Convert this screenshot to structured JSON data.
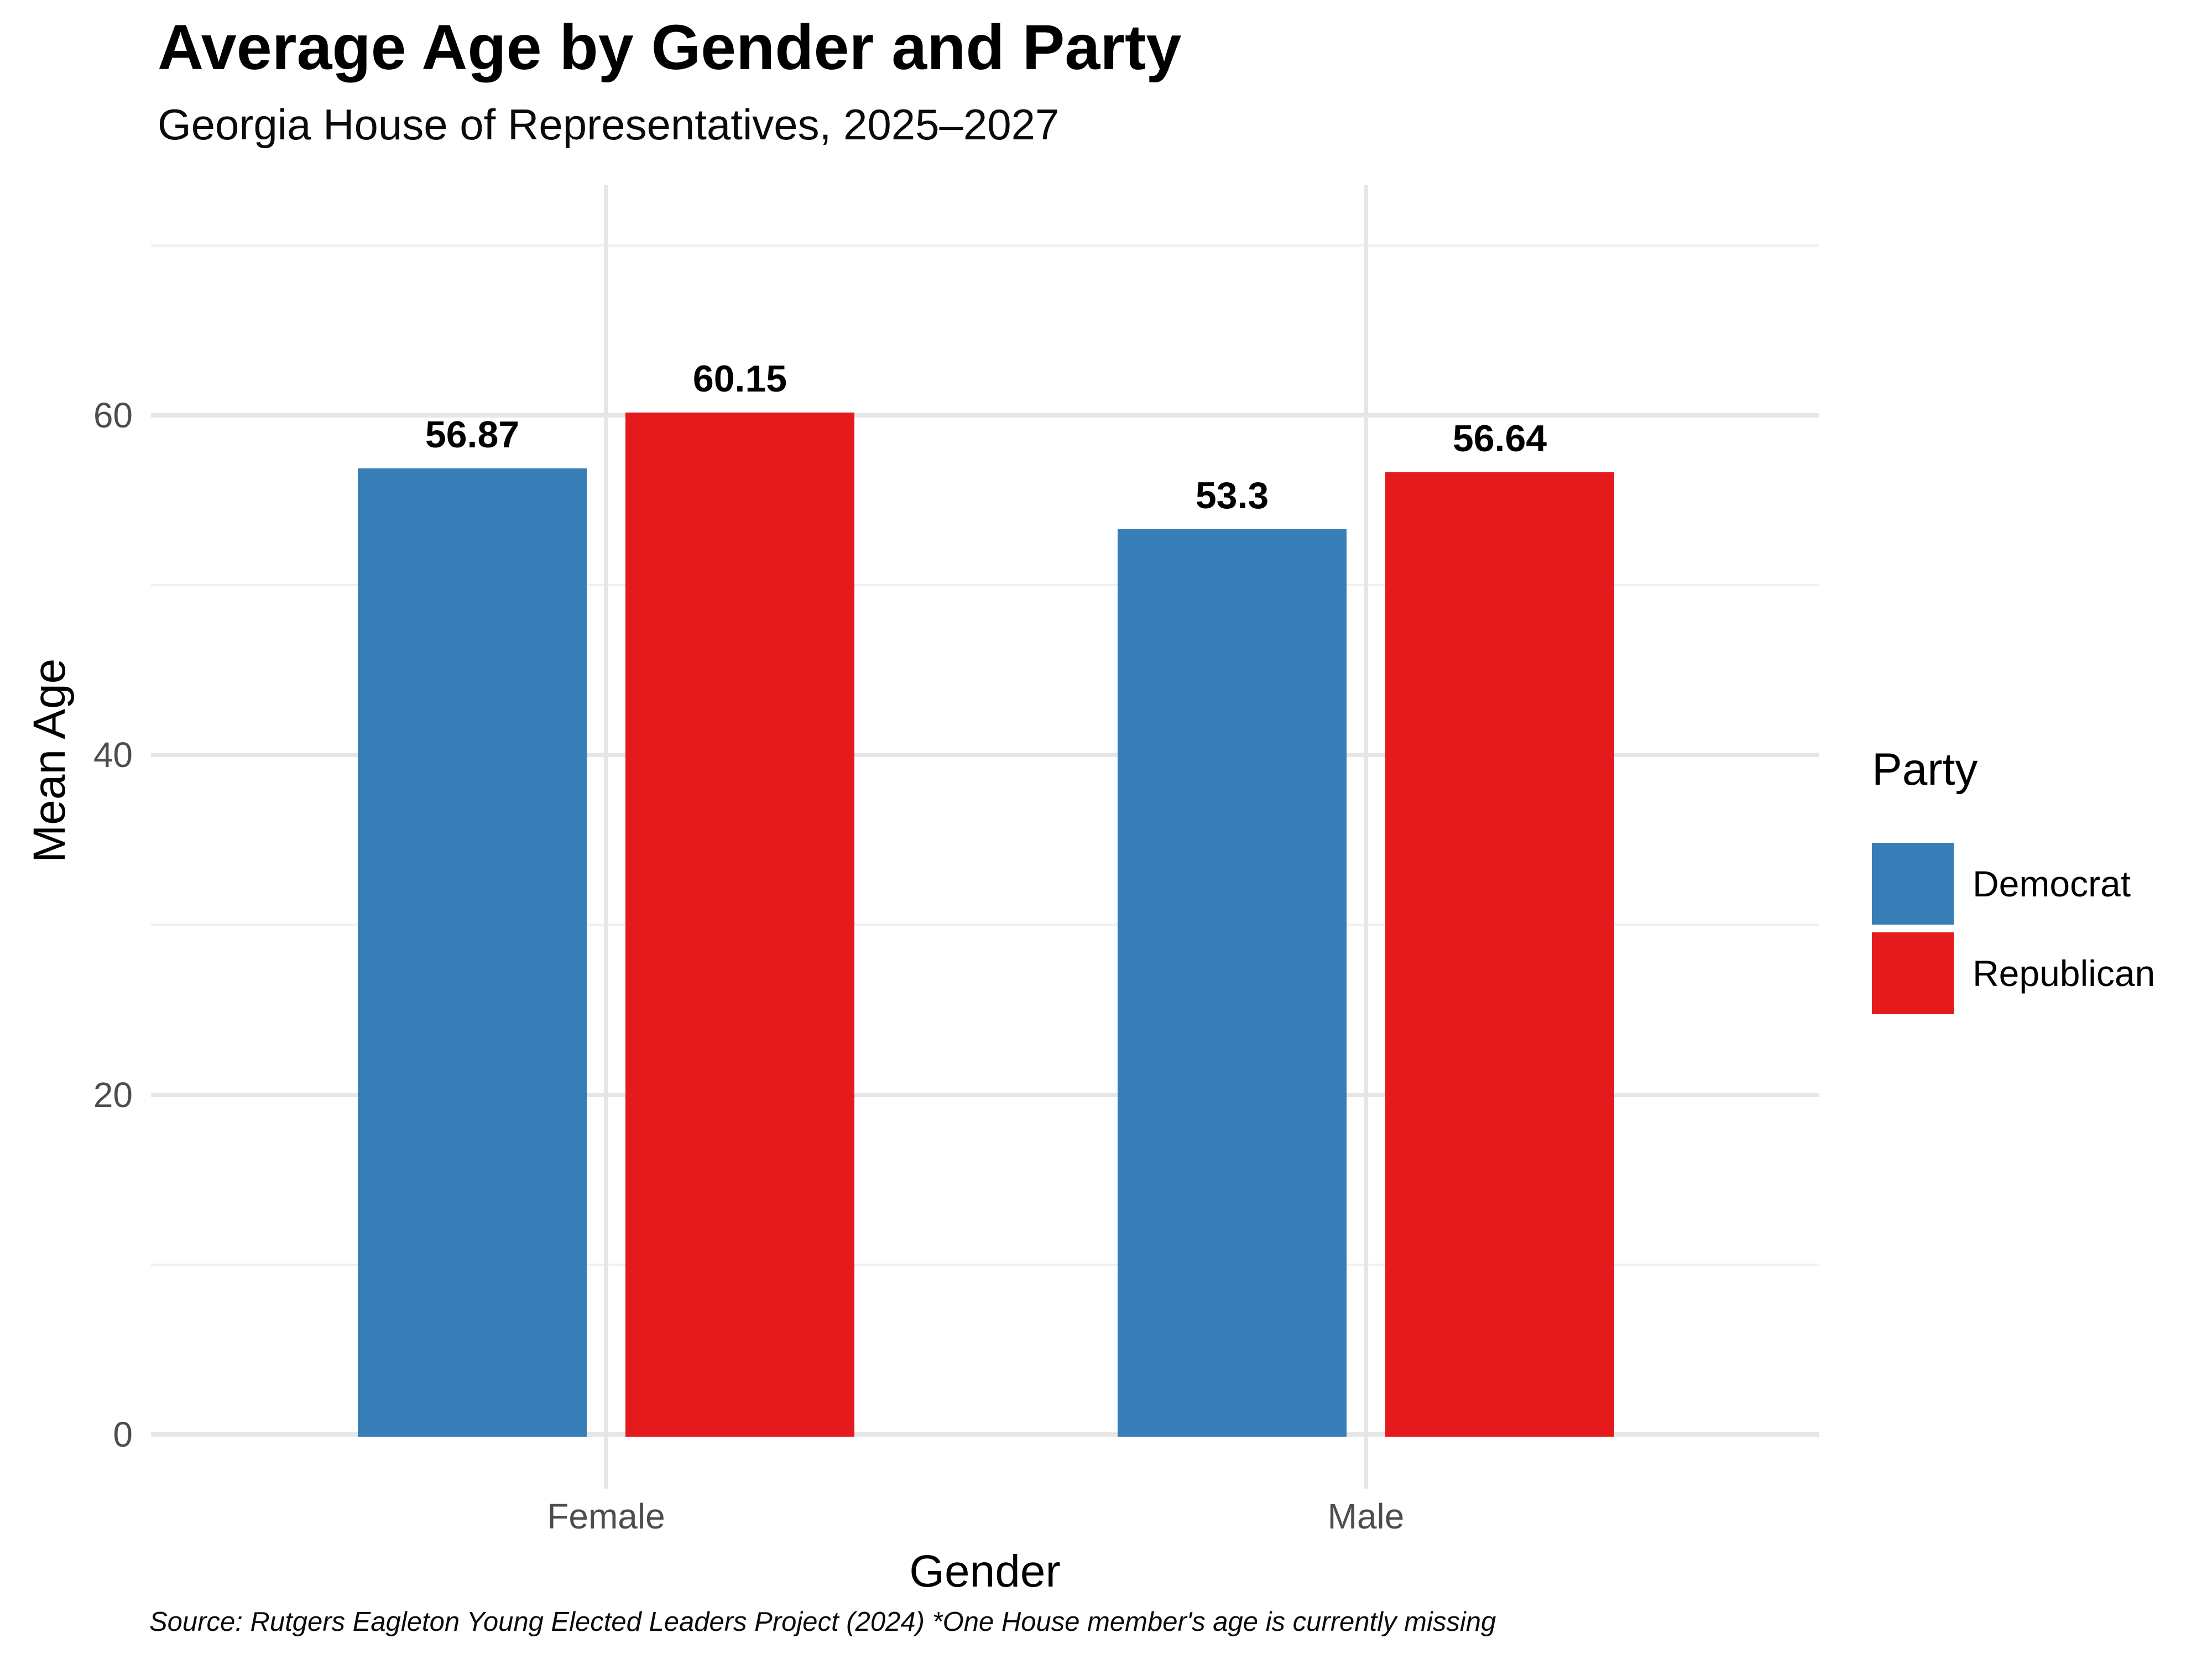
{
  "title": "Average Age by Gender and Party",
  "subtitle": "Georgia House of Representatives, 2025–2027",
  "caption": "Source: Rutgers Eagleton Young Elected Leaders Project (2024) *One House member's age is currently missing",
  "axes": {
    "x_title": "Gender",
    "y_title": "Mean Age"
  },
  "legend": {
    "title": "Party",
    "items": [
      {
        "label": "Democrat",
        "color": "#377EB8"
      },
      {
        "label": "Republican",
        "color": "#E41A1C"
      }
    ]
  },
  "colors": {
    "democrat": "#377EB8",
    "republican": "#E41A1C",
    "grid_major": "#e6e6e6",
    "grid_minor": "#f0f0f0",
    "tick_text": "#4d4d4d"
  },
  "chart_data": {
    "type": "bar",
    "title": "Average Age by Gender and Party",
    "subtitle": "Georgia House of Representatives, 2025–2027",
    "categories": [
      "Female",
      "Male"
    ],
    "series": [
      {
        "name": "Democrat",
        "color": "#377EB8",
        "values": [
          56.87,
          53.3
        ],
        "labels": [
          "56.87",
          "53.3"
        ]
      },
      {
        "name": "Republican",
        "color": "#E41A1C",
        "values": [
          60.15,
          56.64
        ],
        "labels": [
          "60.15",
          "56.64"
        ]
      }
    ],
    "xlabel": "Gender",
    "ylabel": "Mean Age",
    "ylim": [
      -3.2,
      73.5
    ],
    "yticks": [
      0,
      20,
      40,
      60
    ],
    "yticks_minor": [
      10,
      30,
      50,
      70
    ],
    "grid": true,
    "legend_position": "right",
    "bar_value_labels_shown": true
  }
}
